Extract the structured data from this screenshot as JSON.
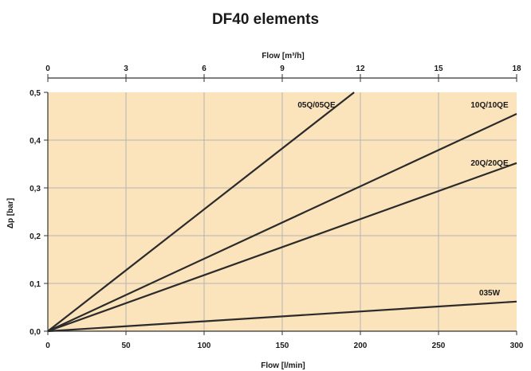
{
  "chart_data": {
    "type": "line",
    "title": "DF40 elements",
    "xlabel": "Flow [l/min]",
    "ylabel": "Δp [bar]",
    "x2label": "Flow [m³/h]",
    "xlim": [
      0,
      300
    ],
    "ylim": [
      0,
      0.5
    ],
    "x2lim": [
      0,
      18
    ],
    "x_ticks": [
      0,
      50,
      100,
      150,
      200,
      250,
      300
    ],
    "x_tick_labels": [
      "0",
      "50",
      "100",
      "150",
      "200",
      "250",
      "300"
    ],
    "x2_ticks": [
      0,
      3,
      6,
      9,
      12,
      15,
      18
    ],
    "x2_tick_labels": [
      "0",
      "3",
      "6",
      "9",
      "12",
      "15",
      "18"
    ],
    "y_ticks": [
      0,
      0.1,
      0.2,
      0.3,
      0.4,
      0.5
    ],
    "y_tick_labels": [
      "0,0",
      "0,1",
      "0,2",
      "0,3",
      "0,4",
      "0,5"
    ],
    "grid": true,
    "colors": {
      "background": "#fbe3bb",
      "line": "#2b2b2b",
      "grid": "#b5b5b5",
      "text": "#1a1a1a"
    },
    "series": [
      {
        "name": "05Q/05QE",
        "x": [
          0,
          196
        ],
        "y": [
          0,
          0.5
        ]
      },
      {
        "name": "10Q/10QE",
        "x": [
          0,
          300
        ],
        "y": [
          0,
          0.455
        ]
      },
      {
        "name": "20Q/20QE",
        "x": [
          0,
          300
        ],
        "y": [
          0,
          0.352
        ]
      },
      {
        "name": "035W",
        "x": [
          0,
          300
        ],
        "y": [
          0,
          0.062
        ]
      }
    ]
  }
}
